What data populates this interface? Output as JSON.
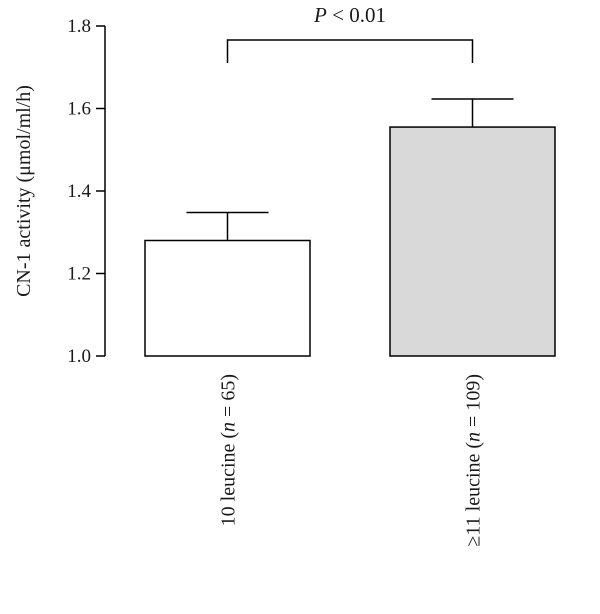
{
  "chart_data": {
    "type": "bar",
    "title": "",
    "ylabel": "CN-1 activity (μmol/ml/h)",
    "xlabel": "",
    "ylim": [
      1.0,
      1.8
    ],
    "yticks": [
      1.0,
      1.2,
      1.4,
      1.6,
      1.8
    ],
    "ytick_labels": [
      "1.0",
      "1.2",
      "1.4",
      "1.6",
      "1.8"
    ],
    "categories": [
      {
        "prefix": "10 leucine (",
        "n_symbol": "n",
        "suffix": " = 65)"
      },
      {
        "prefix": "≥11 leucine (",
        "n_symbol": "n",
        "suffix": " = 109)"
      }
    ],
    "values": [
      1.28,
      1.555
    ],
    "errors": [
      0.068,
      0.068
    ],
    "bar_colors": [
      "#ffffff",
      "#d9d9d9"
    ],
    "annotation": {
      "symbol": "P",
      "text": " < 0.01",
      "between": [
        0,
        1
      ]
    },
    "grid": false
  }
}
